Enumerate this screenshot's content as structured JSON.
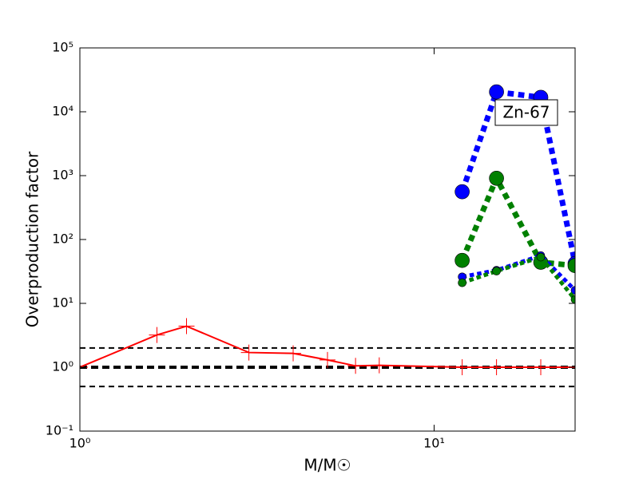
{
  "chart_data": {
    "type": "line",
    "xlabel": "M/M☉",
    "ylabel": "Overproduction factor",
    "xscale": "log",
    "yscale": "log",
    "xlim": [
      1,
      25
    ],
    "ylim": [
      0.1,
      100000
    ],
    "xticks": [
      {
        "value": 1,
        "label": "10⁰"
      },
      {
        "value": 10,
        "label": "10¹"
      }
    ],
    "yticks": [
      {
        "value": 0.1,
        "label": "10⁻¹"
      },
      {
        "value": 1,
        "label": "10⁰"
      },
      {
        "value": 10,
        "label": "10¹"
      },
      {
        "value": 100,
        "label": "10²"
      },
      {
        "value": 1000,
        "label": "10³"
      },
      {
        "value": 10000,
        "label": "10⁴"
      },
      {
        "value": 100000,
        "label": "10⁵"
      }
    ],
    "reference_lines": [
      {
        "value": 2,
        "color": "#000000",
        "width": 2
      },
      {
        "value": 1,
        "color": "#000000",
        "width": 4
      },
      {
        "value": 0.5,
        "color": "#000000",
        "width": 2
      }
    ],
    "annotation": "Zn-67",
    "series": [
      {
        "color": "#ff0000",
        "linestyle": "solid",
        "linewidth": 2,
        "marker": "plus",
        "x": [
          1,
          1.65,
          2,
          3,
          4,
          5,
          6,
          7,
          12,
          15,
          20,
          25
        ],
        "values": [
          1.0,
          3.2,
          4.4,
          1.7,
          1.65,
          1.3,
          1.05,
          1.07,
          1.0,
          1.0,
          1.0,
          1.0
        ]
      },
      {
        "color": "#0000ff",
        "linestyle": "dotted",
        "linewidth": 7,
        "marker": "circle",
        "markersize": 9,
        "x": [
          12,
          15,
          20,
          25
        ],
        "values": [
          560,
          20500,
          16800,
          42
        ]
      },
      {
        "color": "#008000",
        "linestyle": "dotted",
        "linewidth": 7,
        "marker": "circle",
        "markersize": 9,
        "x": [
          12,
          15,
          20,
          25
        ],
        "values": [
          47,
          910,
          44,
          39
        ]
      },
      {
        "color": "#0000ff",
        "linestyle": "dotted",
        "linewidth": 5,
        "marker": "circle",
        "markersize": 5,
        "x": [
          12,
          15,
          20,
          25
        ],
        "values": [
          26,
          33,
          56,
          16
        ]
      },
      {
        "color": "#008000",
        "linestyle": "dotted",
        "linewidth": 5,
        "marker": "circle",
        "markersize": 5,
        "x": [
          12,
          15,
          20,
          25
        ],
        "values": [
          21,
          32,
          53,
          11.5
        ]
      }
    ]
  }
}
